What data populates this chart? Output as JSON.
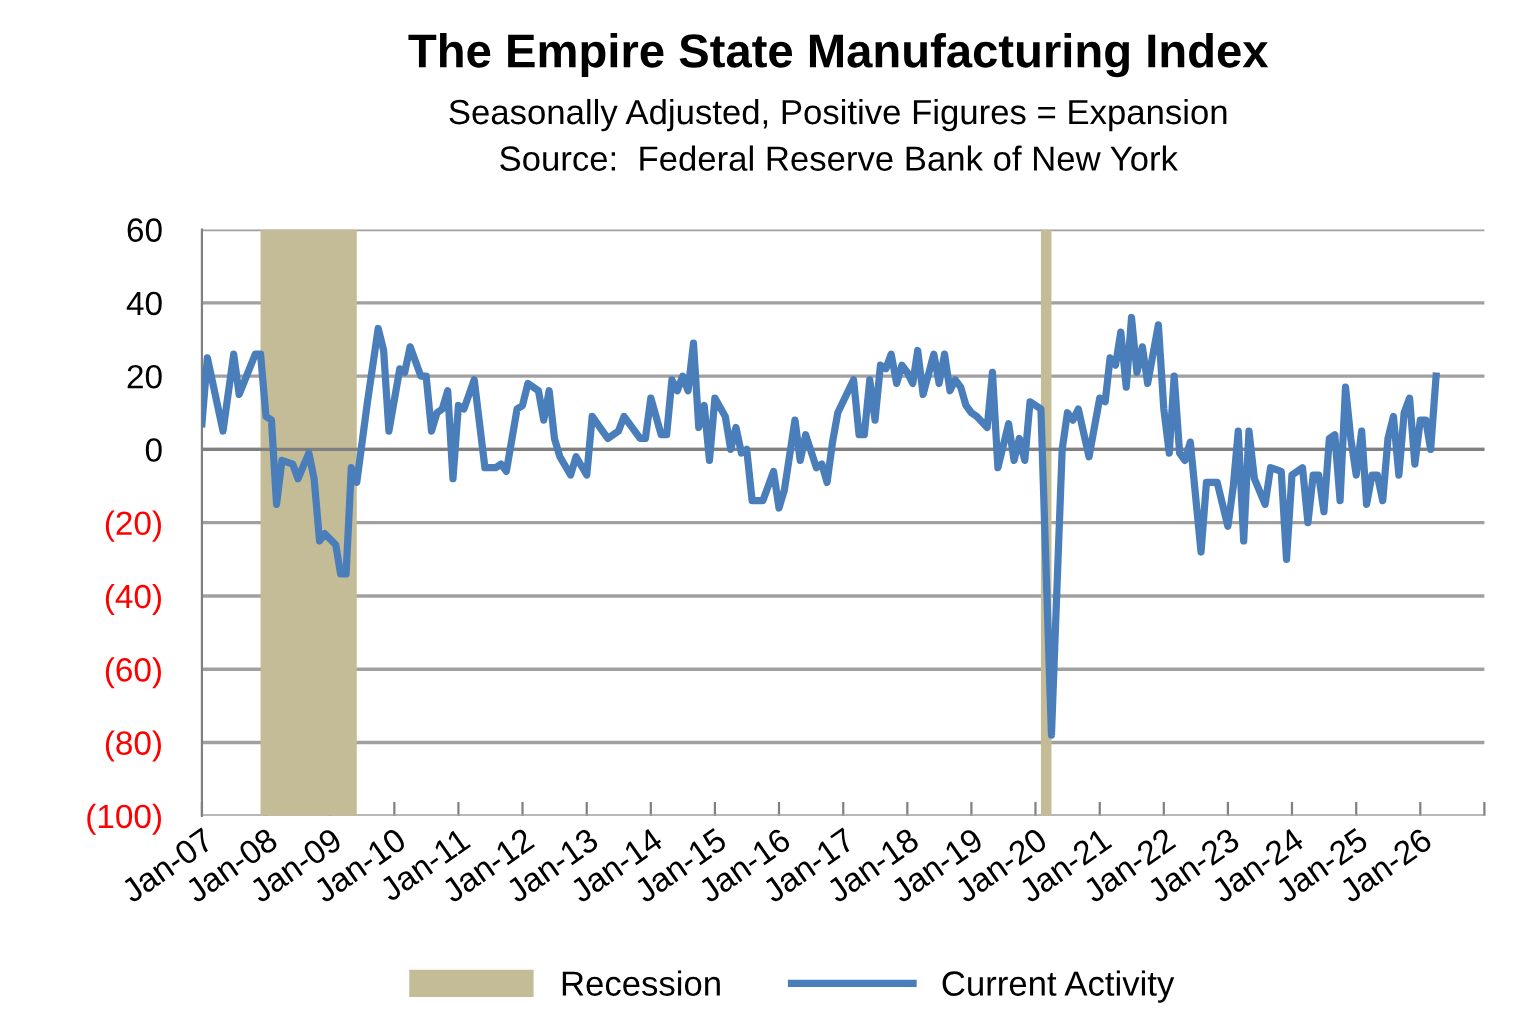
{
  "chart_data": {
    "type": "line",
    "title": "The Empire State Manufacturing Index",
    "subtitle": "Seasonally Adjusted, Positive Figures = Expansion",
    "annotations": [
      "Source:  Federal Reserve Bank of New York"
    ],
    "x": [
      "2007-01",
      "2007-02",
      "2007-05",
      "2007-07",
      "2007-08",
      "2007-11",
      "2007-12",
      "2008-01",
      "2008-02",
      "2008-03",
      "2008-04",
      "2008-06",
      "2008-07",
      "2008-09",
      "2008-10",
      "2008-11",
      "2008-12",
      "2009-02",
      "2009-03",
      "2009-04",
      "2009-05",
      "2009-06",
      "2009-08",
      "2009-10",
      "2009-11",
      "2009-12",
      "2010-02",
      "2010-03",
      "2010-04",
      "2010-06",
      "2010-07",
      "2010-08",
      "2010-09",
      "2010-10",
      "2010-11",
      "2010-12",
      "2011-01",
      "2011-02",
      "2011-04",
      "2011-06",
      "2011-08",
      "2011-09",
      "2011-10",
      "2011-12",
      "2012-01",
      "2012-02",
      "2012-04",
      "2012-05",
      "2012-06",
      "2012-07",
      "2012-08",
      "2012-10",
      "2012-11",
      "2013-01",
      "2013-02",
      "2013-04",
      "2013-05",
      "2013-07",
      "2013-08",
      "2013-11",
      "2013-12",
      "2014-01",
      "2014-03",
      "2014-04",
      "2014-05",
      "2014-06",
      "2014-07",
      "2014-08",
      "2014-09",
      "2014-10",
      "2014-11",
      "2014-12",
      "2015-01",
      "2015-03",
      "2015-04",
      "2015-05",
      "2015-06",
      "2015-07",
      "2015-08",
      "2015-10",
      "2015-12",
      "2016-01",
      "2016-02",
      "2016-04",
      "2016-05",
      "2016-06",
      "2016-08",
      "2016-09",
      "2016-10",
      "2016-11",
      "2016-12",
      "2017-03",
      "2017-04",
      "2017-05",
      "2017-06",
      "2017-07",
      "2017-08",
      "2017-09",
      "2017-10",
      "2017-11",
      "2017-12",
      "2018-01",
      "2018-02",
      "2018-03",
      "2018-04",
      "2018-06",
      "2018-07",
      "2018-08",
      "2018-09",
      "2018-10",
      "2018-11",
      "2018-12",
      "2019-01",
      "2019-02",
      "2019-04",
      "2019-05",
      "2019-06",
      "2019-08",
      "2019-09",
      "2019-10",
      "2019-11",
      "2019-12",
      "2020-02",
      "2020-04",
      "2020-06",
      "2020-07",
      "2020-08",
      "2020-09",
      "2020-11",
      "2021-01",
      "2021-02",
      "2021-03",
      "2021-04",
      "2021-05",
      "2021-06",
      "2021-07",
      "2021-08",
      "2021-09",
      "2021-10",
      "2021-12",
      "2022-01",
      "2022-02",
      "2022-03",
      "2022-04",
      "2022-05",
      "2022-06",
      "2022-08",
      "2022-09",
      "2022-10",
      "2022-11",
      "2023-01",
      "2023-02",
      "2023-03",
      "2023-04",
      "2023-05",
      "2023-06",
      "2023-08",
      "2023-09",
      "2023-11",
      "2023-12",
      "2024-01",
      "2024-03",
      "2024-04",
      "2024-05",
      "2024-06",
      "2024-07",
      "2024-08",
      "2024-09",
      "2024-10",
      "2024-11",
      "2024-12",
      "2025-01",
      "2025-02",
      "2025-03",
      "2025-04",
      "2025-05",
      "2025-06",
      "2025-07",
      "2025-08",
      "2025-09",
      "2025-10",
      "2025-11",
      "2025-12",
      "2026-01",
      "2026-02",
      "2026-03",
      "2026-04"
    ],
    "series": [
      {
        "name": "Current Activity",
        "color": "#4a7ebb",
        "values": [
          7,
          25,
          5,
          26,
          15,
          26,
          26,
          9,
          8,
          -15,
          -3,
          -4,
          -8,
          -1,
          -8,
          -25,
          -23,
          -26,
          -34,
          -34,
          -5,
          -9,
          13,
          33,
          27,
          5,
          22,
          21,
          28,
          20,
          20,
          5,
          10,
          11,
          16,
          -8,
          12,
          11,
          19,
          -5,
          -5,
          -4,
          -6,
          11,
          12,
          18,
          16,
          8,
          16,
          3,
          -2,
          -7,
          -2,
          -7,
          9,
          5,
          3,
          5,
          9,
          3,
          3,
          14,
          4,
          4,
          19,
          16,
          20,
          16,
          29,
          6,
          12,
          -3,
          14,
          9,
          0,
          6,
          -1,
          0,
          -14,
          -14,
          -6,
          -16,
          -11,
          8,
          -3,
          4,
          -5,
          -4,
          -9,
          2,
          10,
          19,
          4,
          4,
          19,
          8,
          23,
          22,
          26,
          18,
          23,
          21,
          18,
          27,
          15,
          26,
          18,
          26,
          16,
          19,
          17,
          12,
          10,
          9,
          6,
          21,
          -5,
          7,
          -3,
          3,
          -3,
          13,
          11,
          -78,
          0,
          10,
          8,
          11,
          -2,
          14,
          13,
          25,
          23,
          32,
          17,
          36,
          21,
          28,
          18,
          34,
          11,
          -1,
          20,
          -1,
          -3,
          2,
          -28,
          -9,
          -9,
          -9,
          -21,
          -10,
          5,
          -25,
          5,
          -8,
          -15,
          -5,
          -6,
          -30,
          -7,
          -5,
          -20,
          -7,
          -7,
          -17,
          3,
          4,
          -14,
          17,
          3,
          -7,
          5,
          -15,
          -7,
          -7,
          -14,
          3,
          9,
          -7,
          10,
          14,
          -4,
          8,
          8,
          0,
          20
        ]
      }
    ],
    "bands": [
      {
        "axis": "x",
        "from": "2007-12",
        "to": "2009-06",
        "label": "Recession",
        "color": "#c4bc96"
      },
      {
        "axis": "x",
        "from": "2020-02",
        "to": "2020-04",
        "color": "#c4bc96"
      }
    ],
    "xlim": [
      "2007-01",
      "2027-01"
    ],
    "xticks": [
      {
        "value": "2007-01",
        "label": "Jan-07"
      },
      {
        "value": "2008-01",
        "label": "Jan-08"
      },
      {
        "value": "2009-01",
        "label": "Jan-09"
      },
      {
        "value": "2010-01",
        "label": "Jan-10"
      },
      {
        "value": "2011-01",
        "label": "Jan-11"
      },
      {
        "value": "2012-01",
        "label": "Jan-12"
      },
      {
        "value": "2013-01",
        "label": "Jan-13"
      },
      {
        "value": "2014-01",
        "label": "Jan-14"
      },
      {
        "value": "2015-01",
        "label": "Jan-15"
      },
      {
        "value": "2016-01",
        "label": "Jan-16"
      },
      {
        "value": "2017-01",
        "label": "Jan-17"
      },
      {
        "value": "2018-01",
        "label": "Jan-18"
      },
      {
        "value": "2019-01",
        "label": "Jan-19"
      },
      {
        "value": "2020-01",
        "label": "Jan-20"
      },
      {
        "value": "2021-01",
        "label": "Jan-21"
      },
      {
        "value": "2022-01",
        "label": "Jan-22"
      },
      {
        "value": "2023-01",
        "label": "Jan-23"
      },
      {
        "value": "2024-01",
        "label": "Jan-24"
      },
      {
        "value": "2025-01",
        "label": "Jan-25"
      },
      {
        "value": "2026-01",
        "label": "Jan-26"
      },
      {
        "value": "2027-01",
        "label": null
      }
    ],
    "ylim": [
      -100,
      60
    ],
    "yticks": [
      60,
      40,
      20,
      0,
      {
        "value": -20,
        "label": "(20)"
      },
      {
        "value": -40,
        "label": "(40)"
      },
      {
        "value": -60,
        "label": "(60)"
      },
      {
        "value": -80,
        "label": "(80)"
      },
      {
        "value": -100,
        "label": "(100)"
      }
    ],
    "grid": "y",
    "legend": "bottom",
    "marker": "none",
    "line_style": "solid"
  }
}
